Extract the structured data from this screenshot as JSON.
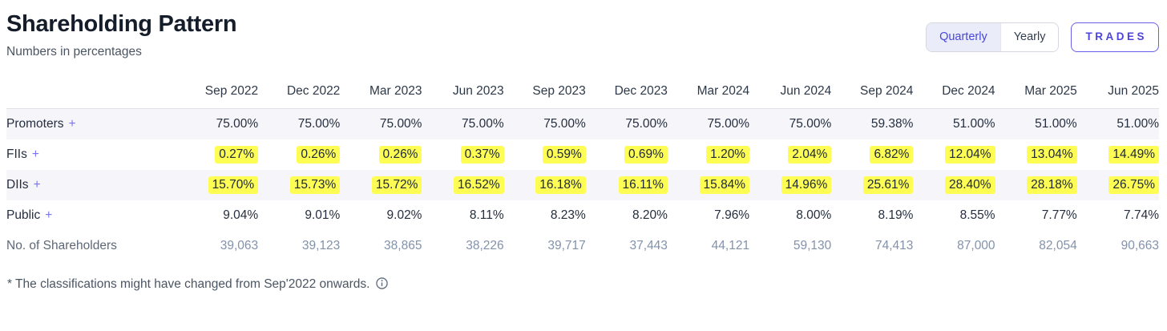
{
  "header": {
    "title": "Shareholding Pattern",
    "subtitle": "Numbers in percentages",
    "toggle": {
      "options": [
        "Quarterly",
        "Yearly"
      ],
      "selected": "Quarterly"
    },
    "trades_label": "TRADES"
  },
  "table": {
    "quarters": [
      "Sep 2022",
      "Dec 2022",
      "Mar 2023",
      "Jun 2023",
      "Sep 2023",
      "Dec 2023",
      "Mar 2024",
      "Jun 2024",
      "Sep 2024",
      "Dec 2024",
      "Mar 2025",
      "Jun 2025"
    ],
    "rows": [
      {
        "label": "Promoters",
        "expandable": true,
        "highlighted": false,
        "values": [
          "75.00%",
          "75.00%",
          "75.00%",
          "75.00%",
          "75.00%",
          "75.00%",
          "75.00%",
          "75.00%",
          "59.38%",
          "51.00%",
          "51.00%",
          "51.00%"
        ]
      },
      {
        "label": "FIIs",
        "expandable": true,
        "highlighted": true,
        "values": [
          "0.27%",
          "0.26%",
          "0.26%",
          "0.37%",
          "0.59%",
          "0.69%",
          "1.20%",
          "2.04%",
          "6.82%",
          "12.04%",
          "13.04%",
          "14.49%"
        ]
      },
      {
        "label": "DIIs",
        "expandable": true,
        "highlighted": true,
        "values": [
          "15.70%",
          "15.73%",
          "15.72%",
          "16.52%",
          "16.18%",
          "16.11%",
          "15.84%",
          "14.96%",
          "25.61%",
          "28.40%",
          "28.18%",
          "26.75%"
        ]
      },
      {
        "label": "Public",
        "expandable": true,
        "highlighted": false,
        "values": [
          "9.04%",
          "9.01%",
          "9.02%",
          "8.11%",
          "8.23%",
          "8.20%",
          "7.96%",
          "8.00%",
          "8.19%",
          "8.55%",
          "7.77%",
          "7.74%"
        ]
      },
      {
        "label": "No. of Shareholders",
        "expandable": false,
        "highlighted": false,
        "values": [
          "39,063",
          "39,123",
          "38,865",
          "38,226",
          "39,717",
          "37,443",
          "44,121",
          "59,130",
          "74,413",
          "87,000",
          "82,054",
          "90,663"
        ]
      }
    ]
  },
  "footnote": {
    "text": "* The classifications might have changed from Sep'2022 onwards.",
    "icon": "info-circle-icon"
  },
  "colors": {
    "accent_indigo": "#4d43de",
    "toggle_selected_bg": "#ebecf9",
    "highlight_yellow": "#fdfd54",
    "stripe_bg": "#f6f6fa",
    "title_text": "#151d2b",
    "muted_text": "#8292ab"
  }
}
